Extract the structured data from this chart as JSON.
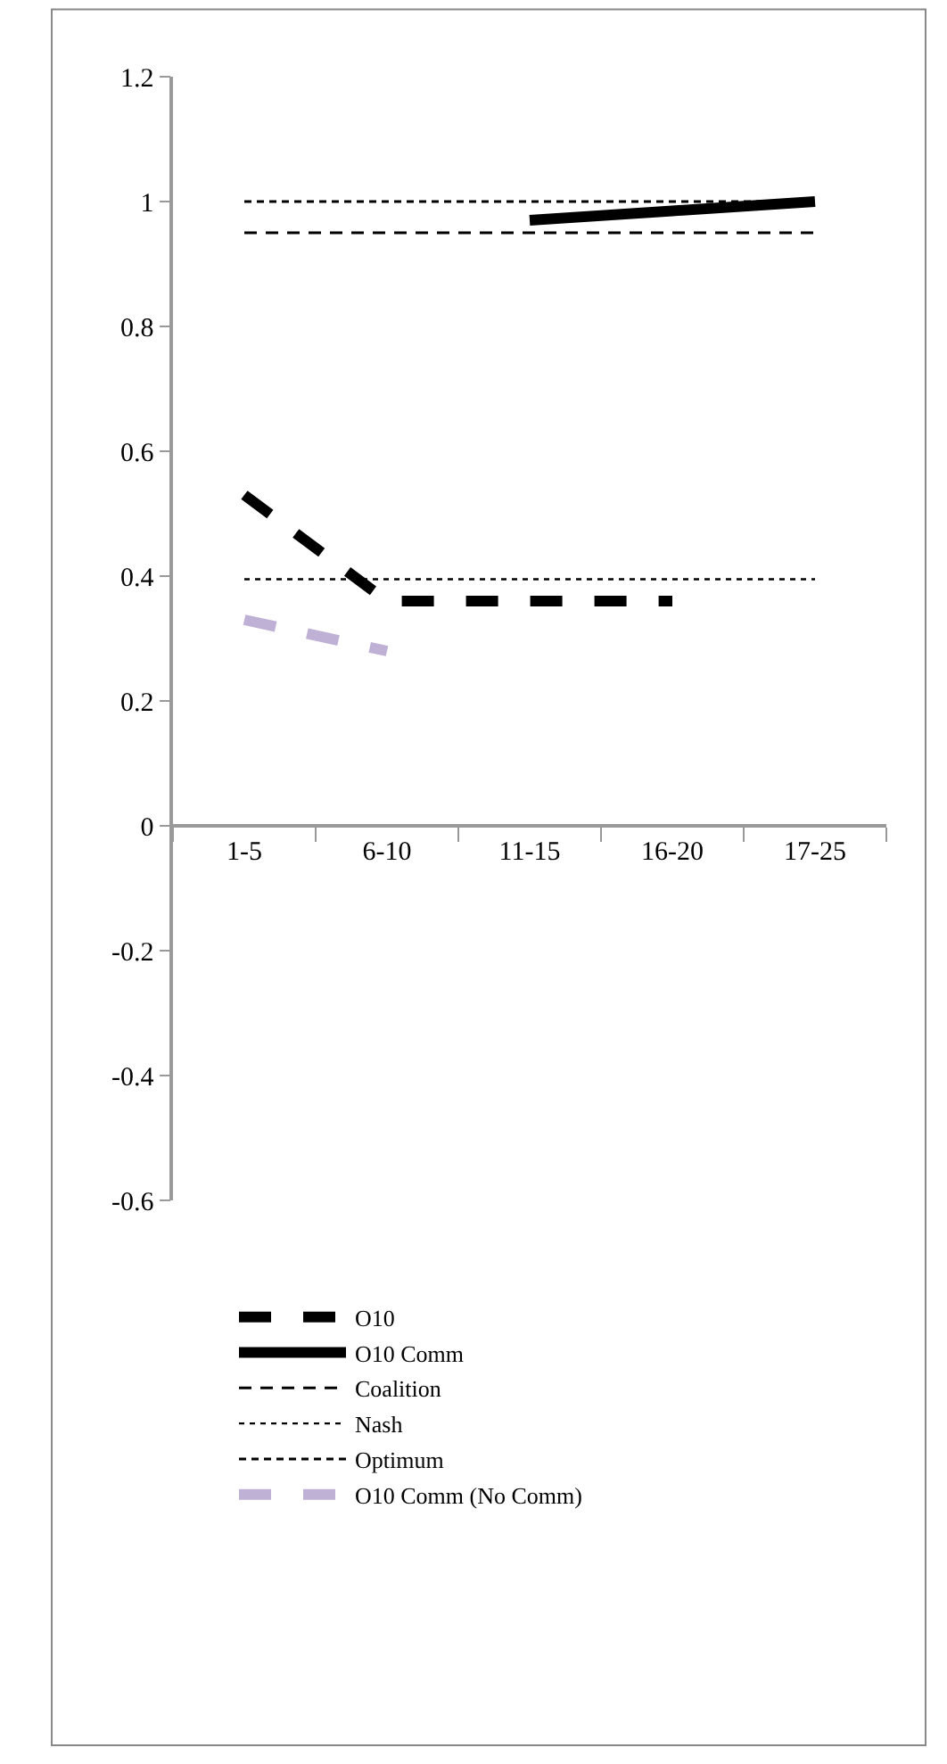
{
  "chart_data": {
    "type": "line",
    "categories": [
      "1-5",
      "6-10",
      "11-15",
      "16-20",
      "17-25"
    ],
    "series": [
      {
        "name": "O10",
        "color": "#000000",
        "line_style": "dashed",
        "values": [
          0.53,
          0.36,
          0.36,
          0.36,
          null
        ]
      },
      {
        "name": "O10 Comm",
        "color": "#000000",
        "line_style": "solid",
        "values": [
          null,
          null,
          0.97,
          0.985,
          1.0
        ]
      },
      {
        "name": "Coalition",
        "color": "#000000",
        "line_style": "dashed",
        "values": [
          0.95,
          0.95,
          0.95,
          0.95,
          0.95
        ]
      },
      {
        "name": "Nash",
        "color": "#000000",
        "line_style": "dotted",
        "values": [
          0.395,
          0.395,
          0.395,
          0.395,
          0.395
        ]
      },
      {
        "name": "Optimum",
        "color": "#000000",
        "line_style": "dashed",
        "values": [
          1.0,
          1.0,
          1.0,
          1.0,
          1.0
        ]
      },
      {
        "name": "O10 Comm (No Comm)",
        "color": "#bfb1d5",
        "line_style": "dashed",
        "values": [
          0.33,
          0.28,
          null,
          null,
          null
        ]
      }
    ],
    "ylim": [
      -0.6,
      1.2
    ],
    "yticks": [
      {
        "value": -0.6,
        "label": "-0.6"
      },
      {
        "value": -0.4,
        "label": "-0.4"
      },
      {
        "value": -0.2,
        "label": "-0.2"
      },
      0,
      {
        "value": 0.2,
        "label": "0.2"
      },
      {
        "value": 0.4,
        "label": "0.4"
      },
      {
        "value": 0.6,
        "label": "0.6"
      },
      {
        "value": 0.8,
        "label": "0.8"
      },
      1,
      {
        "value": 1.2,
        "label": "1.2"
      }
    ],
    "legend": "bottom",
    "marker": "none"
  }
}
